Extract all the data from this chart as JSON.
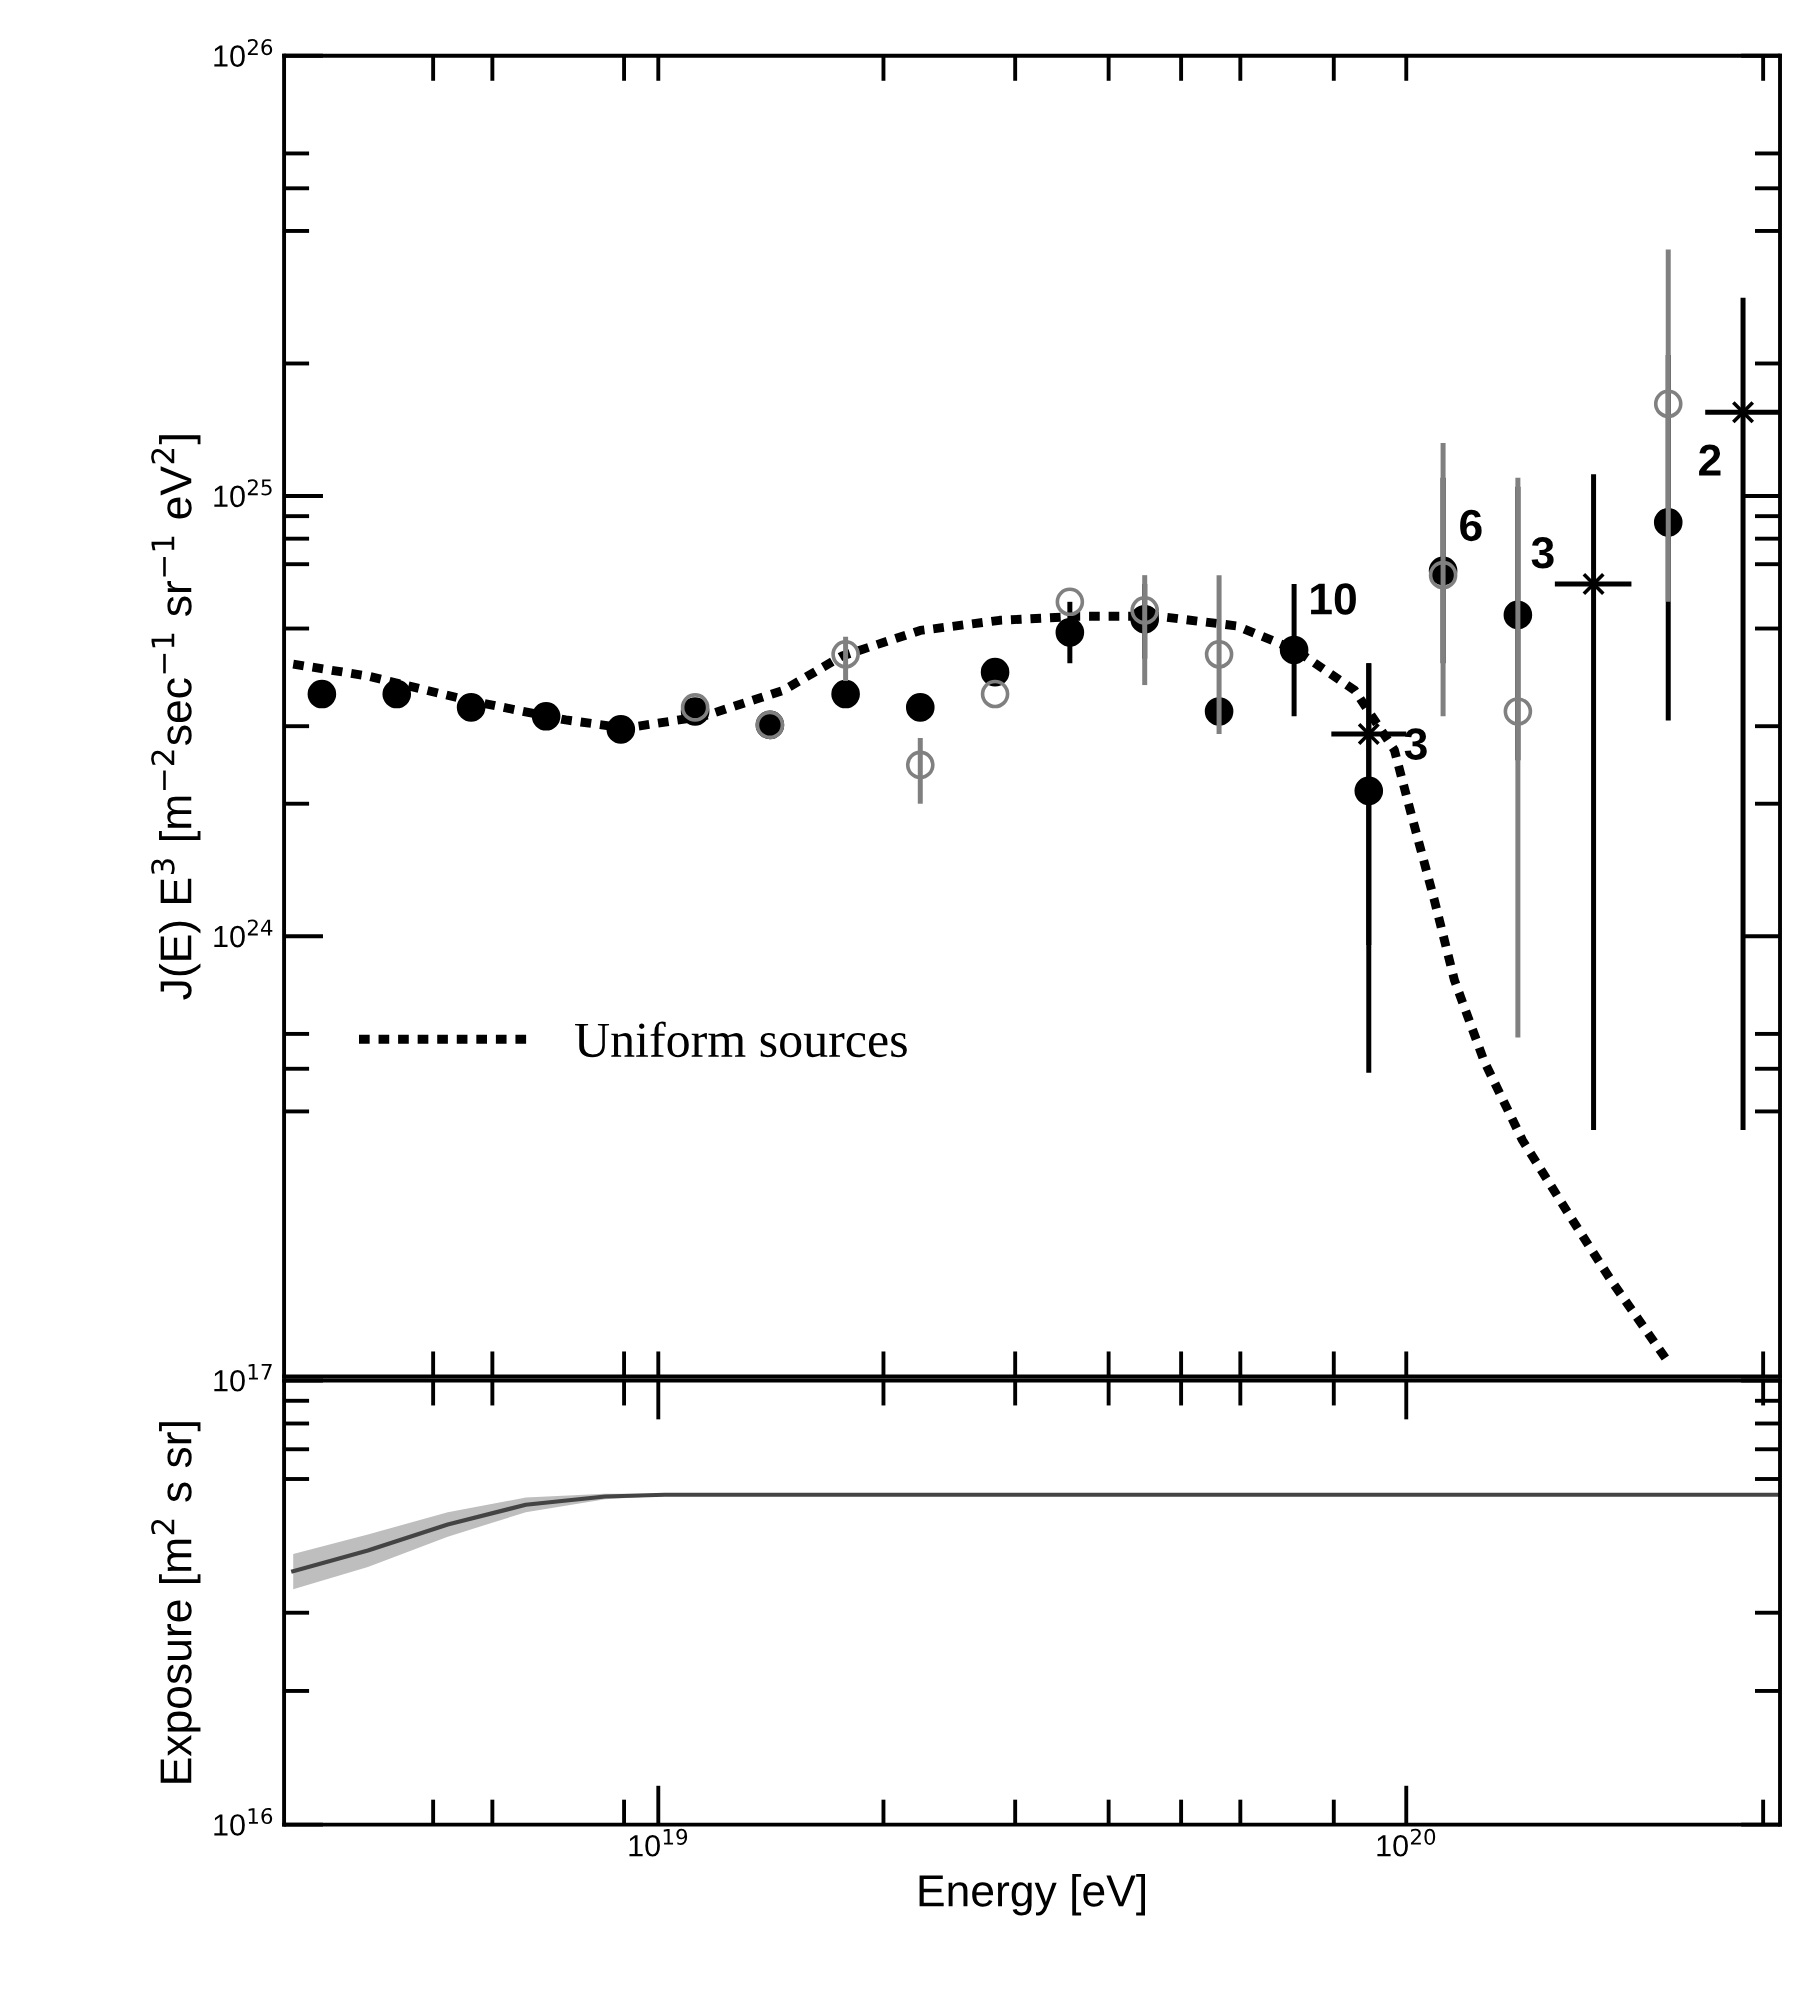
{
  "chart_data": [
    {
      "type": "scatter",
      "ylabel": "J(E) E$^{3}$ [m$^{−2}$sec$^{−1}$ sr$^{−1}$ eV$^{2}$]",
      "log": "xy",
      "legend": "lower left",
      "tick_labels": "y",
      "xlim": [
        3.16e+18,
        3.16e+20
      ],
      "ylim": [
        1e+23,
        1e+26
      ],
      "xticks": [
        {
          "value": 5e+18,
          "label": null
        },
        {
          "value": 6e+18,
          "label": null
        },
        {
          "value": 9e+18,
          "label": null
        },
        {
          "value": 1e+19,
          "label": null
        },
        {
          "value": 2e+19,
          "label": null
        },
        {
          "value": 3e+19,
          "label": null
        },
        {
          "value": 4e+19,
          "label": null
        },
        {
          "value": 5e+19,
          "label": null
        },
        {
          "value": 6e+19,
          "label": null
        },
        {
          "value": 8e+19,
          "label": null
        },
        {
          "value": 1e+20,
          "label": null
        },
        {
          "value": 3e+20,
          "label": null
        }
      ],
      "yticks": [
        {
          "value": 4e+23,
          "label": null
        },
        {
          "value": 5e+23,
          "label": null
        },
        {
          "value": 6e+23,
          "label": null
        },
        {
          "value": 1e+24,
          "label": "10$^{24}$"
        },
        {
          "value": 2e+24,
          "label": null
        },
        {
          "value": 3e+24,
          "label": null
        },
        {
          "value": 5e+24,
          "label": null
        },
        {
          "value": 7e+24,
          "label": null
        },
        {
          "value": 8e+24,
          "label": null
        },
        {
          "value": 9e+24,
          "label": null
        },
        {
          "value": 1e+25,
          "label": "10$^{25}$"
        },
        {
          "value": 2e+25,
          "label": null
        },
        {
          "value": 4e+25,
          "label": null
        },
        {
          "value": 5e+25,
          "label": null
        },
        {
          "value": 6e+25,
          "label": null
        },
        {
          "value": 1e+26,
          "label": "10$^{26}$"
        }
      ],
      "x": [
        3.55e+18,
        4.47e+18,
        5.62e+18,
        7.08e+18,
        8.91e+18,
        1.12e+19,
        1.41e+19,
        1.78e+19,
        2.24e+19,
        2.82e+19,
        3.55e+19,
        4.47e+19,
        5.62e+19,
        7.08e+19,
        8.91e+19,
        1.12e+20,
        1.41e+20,
        1.78e+20,
        2.24e+20
      ],
      "series": [
        {
          "color": "#000000",
          "marker": "circle",
          "values": [
            3.55e+24,
            3.55e+24,
            3.31e+24,
            3.16e+24,
            2.95e+24,
            3.24e+24,
            3.02e+24,
            3.55e+24,
            3.31e+24,
            3.98e+24,
            4.9e+24,
            5.25e+24,
            3.24e+24,
            4.47e+24,
            2.14e+24,
            6.76e+24,
            5.37e+24,
            null,
            8.71e+24
          ],
          "errors": [
            null,
            null,
            null,
            null,
            null,
            null,
            null,
            null,
            null,
            null,
            [
              4.17e+24,
              5.75e+24
            ],
            [
              4.27e+24,
              6.31e+24
            ],
            null,
            [
              3.16e+24,
              6.31e+24
            ],
            [
              4.9e+23,
              4.17e+24
            ],
            [
              4.17e+24,
              1.1e+25
            ],
            [
              2.51e+24,
              1.05e+25
            ],
            null,
            [
              3.09e+24,
              2.09e+25
            ]
          ]
        },
        {
          "color": "#808080",
          "marker": "circle",
          "values": [
            null,
            null,
            null,
            null,
            null,
            3.31e+24,
            3.02e+24,
            4.37e+24,
            2.45e+24,
            3.55e+24,
            5.75e+24,
            5.5e+24,
            4.37e+24,
            null,
            null,
            6.61e+24,
            3.24e+24,
            null,
            1.62e+25
          ],
          "errors": [
            null,
            null,
            null,
            null,
            null,
            null,
            null,
            [
              3.8e+24,
              4.79e+24
            ],
            [
              2e+24,
              2.82e+24
            ],
            null,
            null,
            [
              3.72e+24,
              6.61e+24
            ],
            [
              2.88e+24,
              6.61e+24
            ],
            null,
            null,
            [
              3.16e+24,
              1.32e+25
            ],
            [
              5.89e+23,
              1.1e+25
            ],
            null,
            [
              5.75e+24,
              3.63e+25
            ]
          ]
        },
        {
          "color": "#000000",
          "marker": "cross",
          "x": [
            8.91e+19,
            1.78e+20,
            2.82e+20
          ],
          "values": [
            2.88e+24,
            6.31e+24,
            1.55e+25
          ],
          "errors": [
            [
              9.55e+23,
              4.17e+24
            ],
            [
              3.63e+23,
              1.12e+25
            ],
            [
              3.63e+23,
              2.82e+25
            ]
          ],
          "xerrors": [
            [
              7.94e+19,
              1e+20
            ],
            [
              1.58e+20,
              2e+20
            ],
            [
              2.51e+20,
              3.16e+20
            ]
          ]
        },
        {
          "type": "line",
          "name": "Uniform sources",
          "color": "#000000",
          "line_style": "dotted",
          "x": [
            3.25e+18,
            4.09e+18,
            5.55e+18,
            7.52e+18,
            9.02e+18,
            1.15e+19,
            1.47e+19,
            1.76e+19,
            2.24e+19,
            2.86e+19,
            3.65e+19,
            4.66e+19,
            5.93e+19,
            7.11e+19,
            8.53e+19,
            9.64e+19,
            1.02e+20,
            1.09e+20,
            1.16e+20,
            1.27e+20,
            1.43e+20,
            1.67e+20,
            1.88e+20,
            2.23e+20
          ],
          "values": [
            4.15e+24,
            3.9e+24,
            3.44e+24,
            3.1e+24,
            2.97e+24,
            3.16e+24,
            3.62e+24,
            4.33e+24,
            4.95e+24,
            5.22e+24,
            5.33e+24,
            5.33e+24,
            5.07e+24,
            4.47e+24,
            3.62e+24,
            2.65e+24,
            1.84e+24,
            1.21e+24,
            7.94e+23,
            5.22e+23,
            3.44e+23,
            2.26e+23,
            1.65e+23,
            1.09e+23
          ]
        }
      ],
      "annotations": [
        {
          "text": "10",
          "x": 7.08e+19,
          "y": 4.47e+24
        },
        {
          "text": "3",
          "x": 8.91e+19,
          "y": 2.88e+24
        },
        {
          "text": "6",
          "x": 1.12e+20,
          "y": 6.76e+24
        },
        {
          "text": "3",
          "x": 1.41e+20,
          "y": 5.37e+24
        },
        {
          "text": "2",
          "x": 2.24e+20,
          "y": 8.71e+24
        }
      ]
    },
    {
      "type": "line",
      "xlabel": "Energy [eV]",
      "ylabel": "Exposure [m$^{2}$ s sr]",
      "log": "xy",
      "xlim": [
        3.16e+18,
        3.16e+20
      ],
      "ylim": [
        1e+16,
        1e+17
      ],
      "xticks": [
        {
          "value": 5e+18,
          "label": null
        },
        {
          "value": 6e+18,
          "label": null
        },
        {
          "value": 9e+18,
          "label": null
        },
        {
          "value": 1e+19,
          "label": "10$^{19}$"
        },
        {
          "value": 2e+19,
          "label": null
        },
        {
          "value": 3e+19,
          "label": null
        },
        {
          "value": 4e+19,
          "label": null
        },
        {
          "value": 5e+19,
          "label": null
        },
        {
          "value": 6e+19,
          "label": null
        },
        {
          "value": 8e+19,
          "label": null
        },
        {
          "value": 1e+20,
          "label": "10$^{20}$"
        },
        {
          "value": 3e+20,
          "label": null
        }
      ],
      "yticks": [
        {
          "value": 1e+16,
          "label": "10$^{16}$"
        },
        {
          "value": 2e+16,
          "label": null
        },
        {
          "value": 3e+16,
          "label": null
        },
        {
          "value": 6e+16,
          "label": null
        },
        {
          "value": 7e+16,
          "label": null
        },
        {
          "value": 8e+16,
          "label": null
        },
        {
          "value": 9e+16,
          "label": null
        },
        {
          "value": 1e+17,
          "label": "10$^{17}$"
        }
      ],
      "series": [
        {
          "color": "#444444",
          "x": [
            3.25e+18,
            4.09e+18,
            5.23e+18,
            6.65e+18,
            8.49e+18,
            1.02e+19,
            3.16e+20
          ],
          "values": [
            3.72e+16,
            4.14e+16,
            4.74e+16,
            5.25e+16,
            5.48e+16,
            5.53e+16,
            5.53e+16
          ],
          "lower": [
            3.39e+16,
            3.8e+16,
            4.45e+16,
            5.05e+16,
            5.4e+16,
            5.5e+16,
            5.53e+16
          ],
          "upper": [
            4.07e+16,
            4.5e+16,
            5.05e+16,
            5.45e+16,
            5.56e+16,
            5.56e+16,
            5.53e+16
          ]
        }
      ]
    }
  ]
}
